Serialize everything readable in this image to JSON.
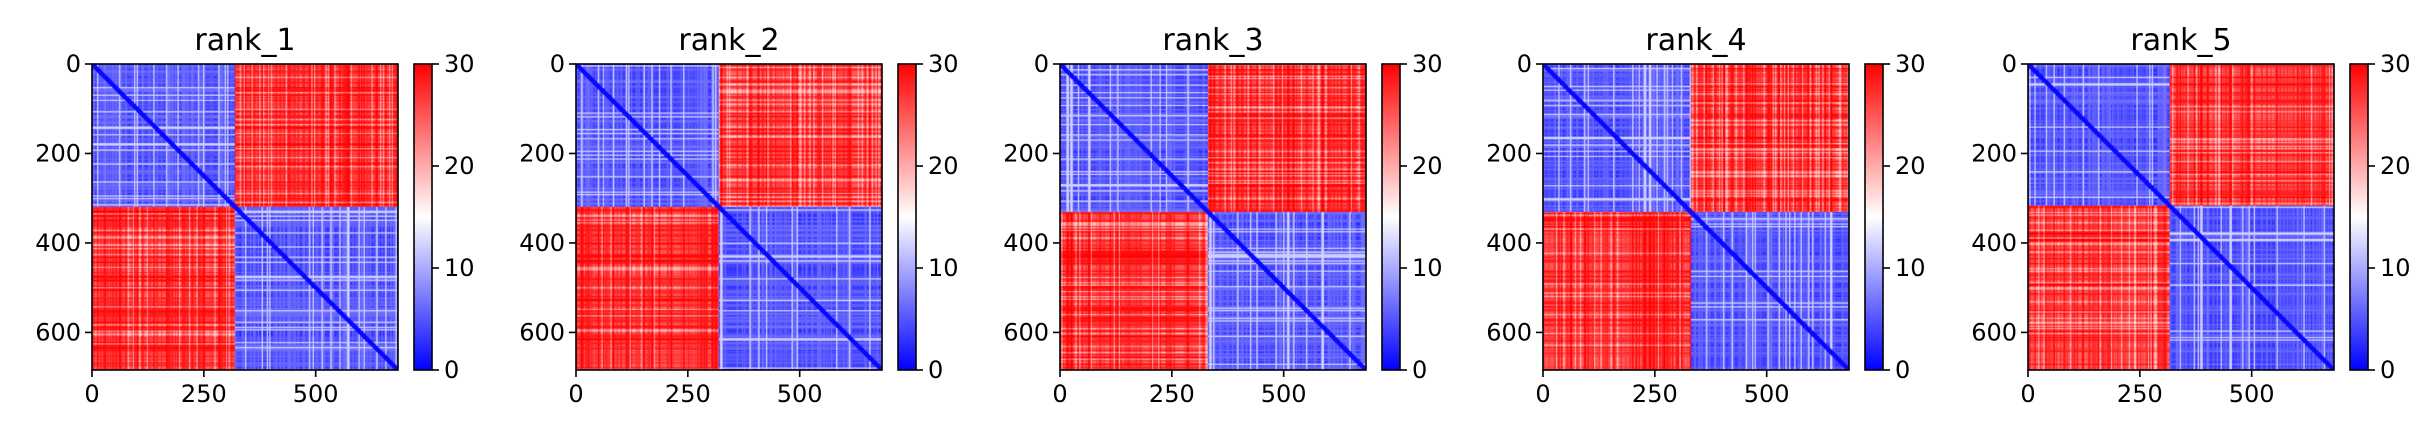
{
  "chart_data": [
    {
      "type": "heatmap",
      "title": "rank_1",
      "n": 684,
      "domain_split": 318,
      "xticks": [
        0,
        250,
        500
      ],
      "yticks": [
        0,
        200,
        400,
        600
      ],
      "xlim": [
        0,
        684
      ],
      "ylim": [
        684,
        0
      ],
      "colorbar": {
        "min": 0,
        "max": 30,
        "ticks": [
          0,
          10,
          20,
          30
        ],
        "colormap": "bwr"
      }
    },
    {
      "type": "heatmap",
      "title": "rank_2",
      "n": 684,
      "domain_split": 318,
      "xticks": [
        0,
        250,
        500
      ],
      "yticks": [
        0,
        200,
        400,
        600
      ],
      "xlim": [
        0,
        684
      ],
      "ylim": [
        684,
        0
      ],
      "colorbar": {
        "min": 0,
        "max": 30,
        "ticks": [
          0,
          10,
          20,
          30
        ],
        "colormap": "bwr"
      }
    },
    {
      "type": "heatmap",
      "title": "rank_3",
      "n": 684,
      "domain_split": 330,
      "xticks": [
        0,
        250,
        500
      ],
      "yticks": [
        0,
        200,
        400,
        600
      ],
      "xlim": [
        0,
        684
      ],
      "ylim": [
        684,
        0
      ],
      "colorbar": {
        "min": 0,
        "max": 30,
        "ticks": [
          0,
          10,
          20,
          30
        ],
        "colormap": "bwr"
      }
    },
    {
      "type": "heatmap",
      "title": "rank_4",
      "n": 684,
      "domain_split": 330,
      "xticks": [
        0,
        250,
        500
      ],
      "yticks": [
        0,
        200,
        400,
        600
      ],
      "xlim": [
        0,
        684
      ],
      "ylim": [
        684,
        0
      ],
      "colorbar": {
        "min": 0,
        "max": 30,
        "ticks": [
          0,
          10,
          20,
          30
        ],
        "colormap": "bwr"
      }
    },
    {
      "type": "heatmap",
      "title": "rank_5",
      "n": 684,
      "domain_split": 315,
      "xticks": [
        0,
        250,
        500
      ],
      "yticks": [
        0,
        200,
        400,
        600
      ],
      "xlim": [
        0,
        684
      ],
      "ylim": [
        684,
        0
      ],
      "colorbar": {
        "min": 0,
        "max": 30,
        "ticks": [
          0,
          10,
          20,
          30
        ],
        "colormap": "bwr"
      }
    }
  ],
  "colors": {
    "low": "#0000ff",
    "mid": "#ffffff",
    "high": "#ff0000"
  }
}
